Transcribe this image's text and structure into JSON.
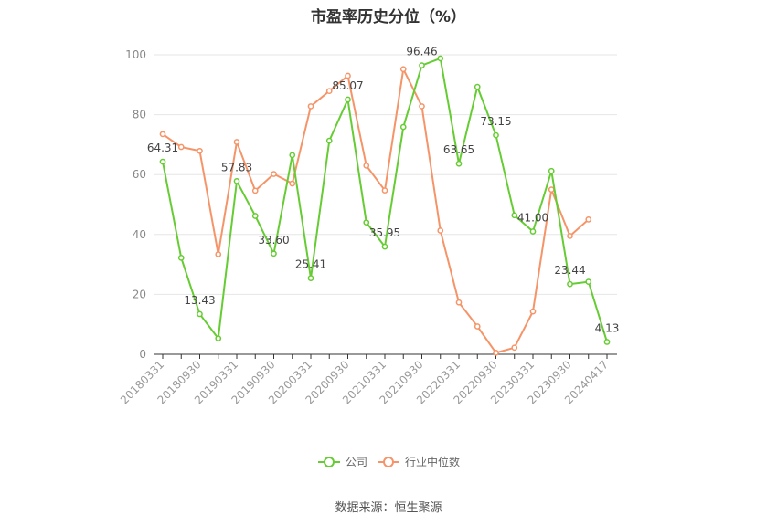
{
  "title": "市盈率历史分位（%）",
  "source": "数据来源：恒生聚源",
  "colors": {
    "company": "#66cc33",
    "industry": "#f59468",
    "grid": "#e6e6e6",
    "axis": "#333333"
  },
  "chart_data": {
    "type": "line",
    "title": "市盈率历史分位（%）",
    "xlabel": "",
    "ylabel": "",
    "ylim": [
      0,
      100
    ],
    "yticks": [
      0,
      20,
      40,
      60,
      80,
      100
    ],
    "grid": true,
    "legend_position": "bottom",
    "x": [
      "20180331",
      "20180630",
      "20180930",
      "20181231",
      "20190331",
      "20190630",
      "20190930",
      "20191231",
      "20200331",
      "20200630",
      "20200930",
      "20201231",
      "20210331",
      "20210630",
      "20210930",
      "20211231",
      "20220331",
      "20220630",
      "20220930",
      "20221231",
      "20230331",
      "20230630",
      "20230930",
      "20231231",
      "20240417"
    ],
    "xtick_labels": [
      "20180331",
      "20180930",
      "20190331",
      "20190930",
      "20200331",
      "20200930",
      "20210331",
      "20210930",
      "20220331",
      "20220930",
      "20230331",
      "20230930",
      "20240417"
    ],
    "series": [
      {
        "name": "公司",
        "values": [
          64.31,
          32.2,
          13.43,
          5.3,
          57.83,
          46.2,
          33.6,
          66.5,
          25.41,
          71.3,
          85.07,
          44.0,
          35.95,
          75.9,
          96.46,
          98.8,
          63.65,
          89.3,
          73.15,
          46.4,
          41.0,
          61.2,
          23.44,
          24.2,
          4.13
        ],
        "labels": [
          "64.31",
          null,
          "13.43",
          null,
          "57.83",
          null,
          "33.60",
          null,
          "25.41",
          null,
          "85.07",
          null,
          "35.95",
          null,
          "96.46",
          null,
          "63.65",
          null,
          "73.15",
          null,
          "41.00",
          null,
          "23.44",
          null,
          "4.13"
        ]
      },
      {
        "name": "行业中位数",
        "values": [
          73.5,
          69.2,
          67.9,
          33.4,
          70.9,
          54.6,
          60.2,
          57.0,
          82.8,
          87.9,
          93.0,
          63.0,
          54.7,
          95.2,
          82.8,
          41.3,
          17.3,
          9.3,
          0.5,
          2.2,
          14.3,
          55.0,
          39.5,
          45.0,
          null
        ]
      }
    ]
  }
}
